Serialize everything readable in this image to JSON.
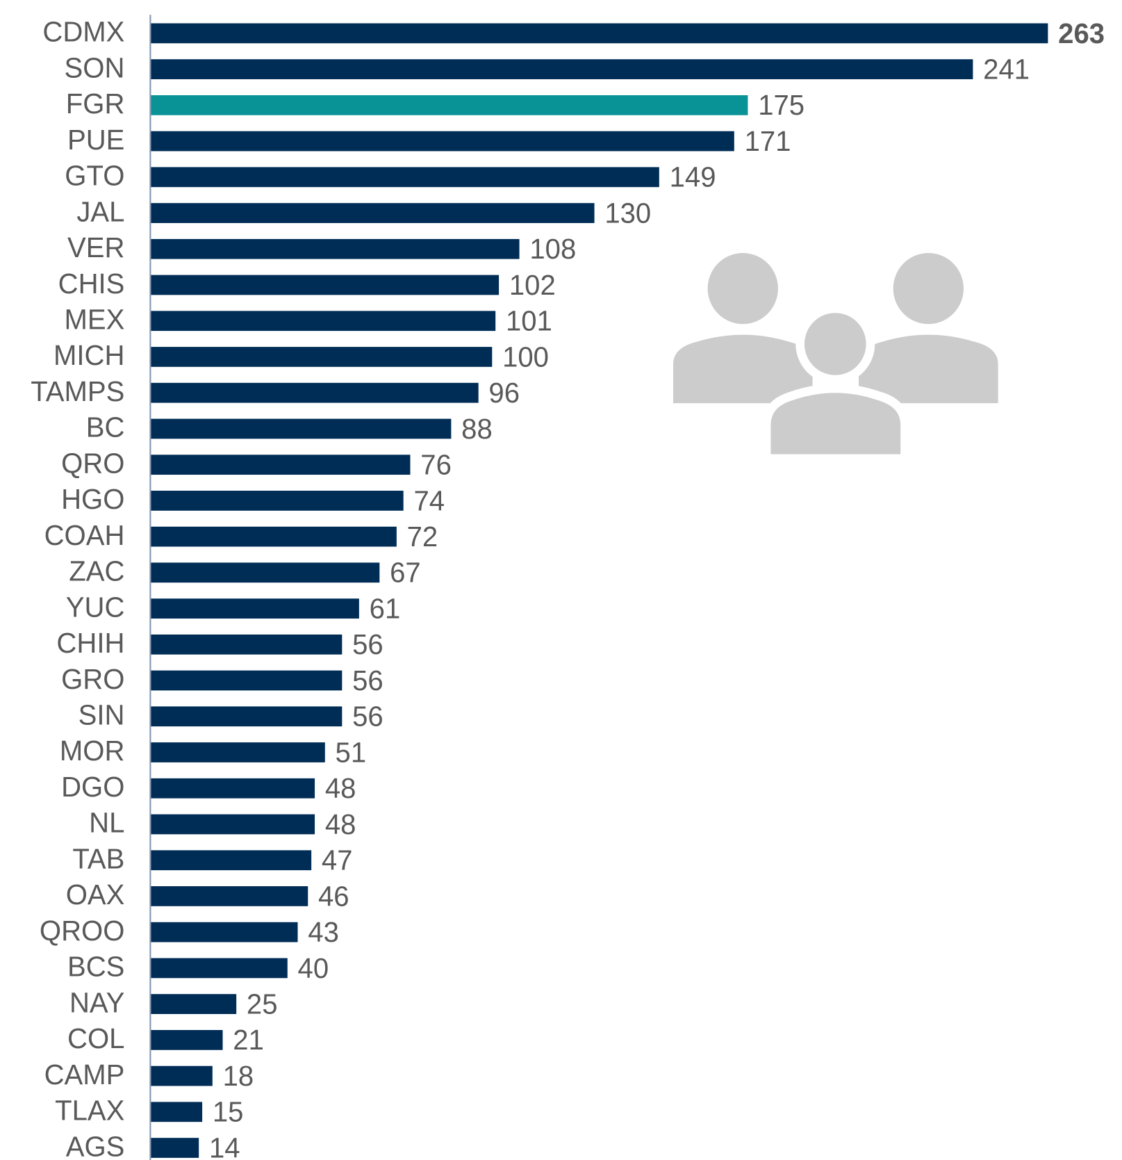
{
  "chart_data": {
    "type": "barh",
    "categories": [
      "CDMX",
      "SON",
      "FGR",
      "PUE",
      "GTO",
      "JAL",
      "VER",
      "CHIS",
      "MEX",
      "MICH",
      "TAMPS",
      "BC",
      "QRO",
      "HGO",
      "COAH",
      "ZAC",
      "YUC",
      "CHIH",
      "GRO",
      "SIN",
      "MOR",
      "DGO",
      "NL",
      "TAB",
      "OAX",
      "QROO",
      "BCS",
      "NAY",
      "COL",
      "CAMP",
      "TLAX",
      "AGS"
    ],
    "values": [
      263,
      241,
      175,
      171,
      149,
      130,
      108,
      102,
      101,
      100,
      96,
      88,
      76,
      74,
      72,
      67,
      61,
      56,
      56,
      56,
      51,
      48,
      48,
      47,
      46,
      43,
      40,
      25,
      21,
      18,
      15,
      14
    ],
    "colors": [
      "#002d56",
      "#002d56",
      "#0a9396",
      "#002d56",
      "#002d56",
      "#002d56",
      "#002d56",
      "#002d56",
      "#002d56",
      "#002d56",
      "#002d56",
      "#002d56",
      "#002d56",
      "#002d56",
      "#002d56",
      "#002d56",
      "#002d56",
      "#002d56",
      "#002d56",
      "#002d56",
      "#002d56",
      "#002d56",
      "#002d56",
      "#002d56",
      "#002d56",
      "#002d56",
      "#002d56",
      "#002d56",
      "#002d56",
      "#002d56",
      "#002d56",
      "#002d56"
    ]
  }
}
